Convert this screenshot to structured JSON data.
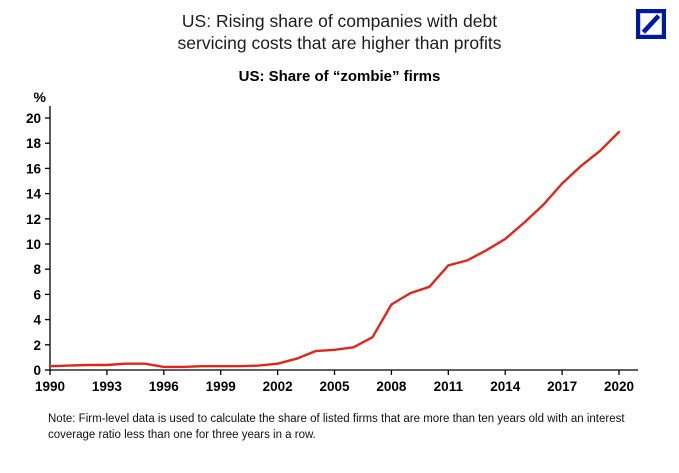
{
  "colors": {
    "logo_blue": "#0018a8",
    "line_red": "#e1251b",
    "axis_black": "#000000"
  },
  "header": {
    "title_line1": "US: Rising share of companies with debt",
    "title_line2": "servicing costs that are higher than profits",
    "logo_name": "Deutsche Bank"
  },
  "chart_data": {
    "type": "line",
    "title": "US: Share of “zombie” firms",
    "ylabel": "%",
    "xlabel": "",
    "xlim": [
      1990,
      2021
    ],
    "ylim": [
      0,
      20
    ],
    "x_ticks": [
      1990,
      1993,
      1996,
      1999,
      2002,
      2005,
      2008,
      2011,
      2014,
      2017,
      2020
    ],
    "y_ticks": [
      0,
      2,
      4,
      6,
      8,
      10,
      12,
      14,
      16,
      18,
      20
    ],
    "grid": false,
    "legend": false,
    "line_color": "#e1251b",
    "series": [
      {
        "name": "Share of US zombie firms (%)",
        "x": [
          1990,
          1991,
          1992,
          1993,
          1994,
          1995,
          1996,
          1997,
          1998,
          1999,
          2000,
          2001,
          2002,
          2003,
          2004,
          2005,
          2006,
          2007,
          2008,
          2009,
          2010,
          2011,
          2012,
          2013,
          2014,
          2015,
          2016,
          2017,
          2018,
          2019,
          2020
        ],
        "values": [
          0.3,
          0.35,
          0.4,
          0.4,
          0.5,
          0.5,
          0.25,
          0.25,
          0.3,
          0.3,
          0.3,
          0.35,
          0.5,
          0.9,
          1.5,
          1.6,
          1.8,
          2.6,
          5.2,
          6.1,
          6.6,
          8.3,
          8.7,
          9.5,
          10.4,
          11.7,
          13.1,
          14.8,
          16.2,
          17.4,
          18.9
        ]
      }
    ]
  },
  "note": {
    "text": "Note: Firm-level data is used to calculate the share of listed firms that are more than ten years old with an interest coverage ratio less than one for three years in a row."
  }
}
